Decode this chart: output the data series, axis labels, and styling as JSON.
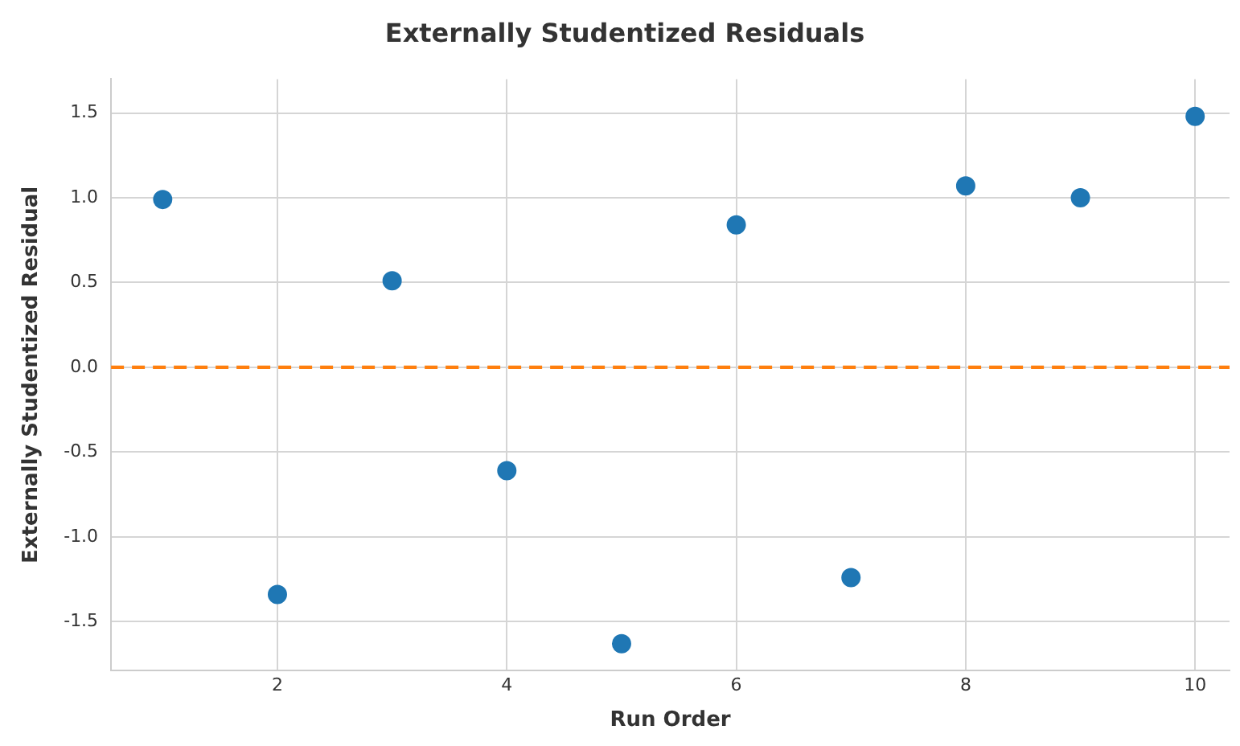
{
  "chart_data": {
    "type": "scatter",
    "title": "Externally Studentized Residuals",
    "xlabel": "Run Order",
    "ylabel": "Externally Studentized Residual",
    "x": [
      1,
      2,
      3,
      4,
      5,
      6,
      7,
      8,
      9,
      10
    ],
    "series": [
      {
        "color": "#1f77b4",
        "values": [
          0.99,
          -1.34,
          0.51,
          -0.61,
          -1.63,
          0.84,
          -1.24,
          1.07,
          1.0,
          1.48
        ]
      }
    ],
    "xlim": [
      0.55,
      10.3
    ],
    "xticks": [
      2,
      4,
      6,
      8,
      10
    ],
    "ylim": [
      -1.79,
      1.7
    ],
    "yticks": [
      {
        "value": -1.5,
        "label": "-1.5"
      },
      {
        "value": -1,
        "label": "-1.0"
      },
      {
        "value": -0.5,
        "label": "-0.5"
      },
      {
        "value": 0,
        "label": "0.0"
      },
      {
        "value": 0.5,
        "label": "0.5"
      },
      {
        "value": 1,
        "label": "1.0"
      },
      {
        "value": 1.5,
        "label": "1.5"
      }
    ],
    "ref_lines": [
      {
        "axis": "y",
        "value": 0,
        "color": "#ff7f0e",
        "line_style": "dashed"
      }
    ],
    "grid": true,
    "legend": false,
    "marker": "circle"
  }
}
